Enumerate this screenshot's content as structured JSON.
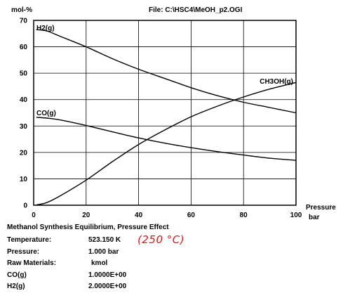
{
  "header": {
    "ylabel": "mol-%",
    "file": "File: C:\\HSC4\\MeOH_p2.OGI"
  },
  "chart_data": {
    "type": "line",
    "title": "",
    "xlabel": "Pressure",
    "xunit": "bar",
    "ylabel": "mol-%",
    "xlim": [
      0,
      100
    ],
    "ylim": [
      0,
      70
    ],
    "xticks": [
      0,
      20,
      40,
      60,
      80,
      100
    ],
    "yticks": [
      0,
      10,
      20,
      30,
      40,
      50,
      60,
      70
    ],
    "grid": true,
    "series": [
      {
        "name": "H2(g)",
        "x": [
          1,
          5,
          10,
          20,
          30,
          40,
          50,
          60,
          70,
          80,
          90,
          100
        ],
        "y": [
          66.5,
          66.0,
          64.0,
          60.0,
          55.5,
          51.5,
          48.0,
          44.5,
          41.5,
          39.0,
          37.0,
          35.0
        ]
      },
      {
        "name": "CO(g)",
        "x": [
          1,
          5,
          10,
          20,
          30,
          40,
          50,
          60,
          70,
          80,
          90,
          100
        ],
        "y": [
          33.3,
          33.0,
          32.3,
          30.2,
          27.8,
          25.5,
          23.5,
          21.8,
          20.3,
          19.0,
          17.8,
          17.0
        ]
      },
      {
        "name": "CH3OH(g)",
        "x": [
          1,
          5,
          10,
          20,
          30,
          40,
          50,
          60,
          70,
          80,
          90,
          100
        ],
        "y": [
          0.1,
          1.0,
          3.5,
          9.5,
          16.5,
          23.0,
          28.5,
          33.5,
          37.5,
          41.0,
          44.0,
          46.5
        ]
      }
    ]
  },
  "caption": "Methanol Synthesis Equilibrium, Pressure Effect",
  "parameters": [
    {
      "label": "Temperature:",
      "value": "523.150 K"
    },
    {
      "label": "Pressure:",
      "value": "1.000 bar"
    },
    {
      "label": "Raw Materials:",
      "value": "kmol"
    },
    {
      "label": "CO(g)",
      "value": "1.0000E+00"
    },
    {
      "label": "H2(g)",
      "value": "2.0000E+00"
    }
  ],
  "handwritten_note": "(250 °C)"
}
